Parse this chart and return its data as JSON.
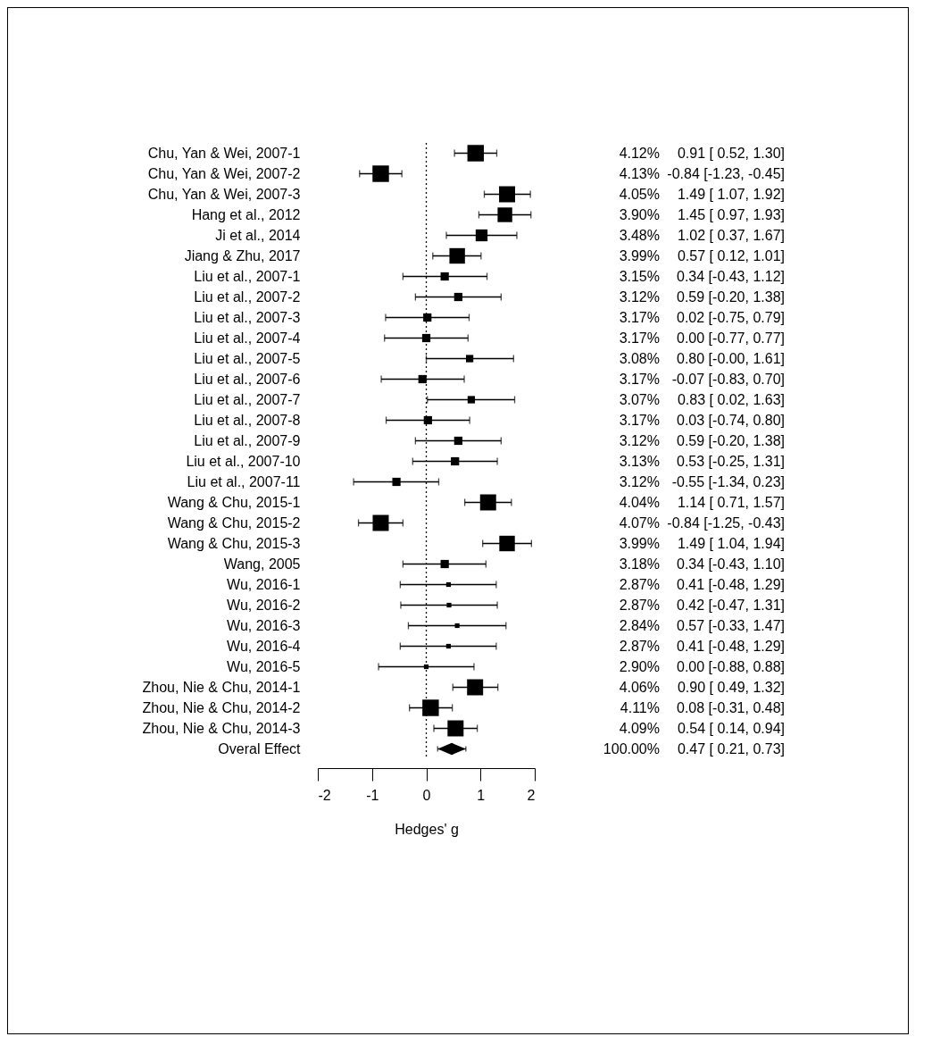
{
  "chart_data": {
    "type": "scatter",
    "orientation": "horizontal",
    "xlabel": "Hedges' g",
    "xlim": [
      -2,
      2
    ],
    "xticks": [
      -2,
      -1,
      0,
      1,
      2
    ],
    "grid": false,
    "categories": [
      "Chu, Yan & Wei, 2007-1",
      "Chu, Yan & Wei, 2007-2",
      "Chu, Yan & Wei, 2007-3",
      "Hang et al., 2012",
      "Ji et al., 2014",
      "Jiang & Zhu, 2017",
      "Liu et al., 2007-1",
      "Liu et al., 2007-2",
      "Liu et al., 2007-3",
      "Liu et al., 2007-4",
      "Liu et al., 2007-5",
      "Liu et al., 2007-6",
      "Liu et al., 2007-7",
      "Liu et al., 2007-8",
      "Liu et al., 2007-9",
      "Liu et al., 2007-10",
      "Liu et al., 2007-11",
      "Wang & Chu, 2015-1",
      "Wang & Chu, 2015-2",
      "Wang & Chu, 2015-3",
      "Wang, 2005",
      "Wu, 2016-1",
      "Wu, 2016-2",
      "Wu, 2016-3",
      "Wu, 2016-4",
      "Wu, 2016-5",
      "Zhou, Nie & Chu, 2014-1",
      "Zhou, Nie & Chu, 2014-2",
      "Zhou, Nie & Chu, 2014-3",
      "Overal Effect"
    ],
    "ref_lines": [
      {
        "axis": "x",
        "value": 0,
        "line_style": "dotted",
        "color": "#000000"
      }
    ],
    "series": [
      {
        "type": "scatter",
        "marker": "square",
        "color": "#000000",
        "values": [
          0.91,
          -0.84,
          1.49,
          1.45,
          1.02,
          0.57,
          0.34,
          0.59,
          0.02,
          0.0,
          0.8,
          -0.07,
          0.83,
          0.03,
          0.59,
          0.53,
          -0.55,
          1.14,
          -0.84,
          1.49,
          0.34,
          0.41,
          0.42,
          0.57,
          0.41,
          0.0,
          0.9,
          0.08,
          0.54,
          null
        ],
        "errors": [
          [
            0.52,
            1.3
          ],
          [
            -1.23,
            -0.45
          ],
          [
            1.07,
            1.92
          ],
          [
            0.97,
            1.93
          ],
          [
            0.37,
            1.67
          ],
          [
            0.12,
            1.01
          ],
          [
            -0.43,
            1.12
          ],
          [
            -0.2,
            1.38
          ],
          [
            -0.75,
            0.79
          ],
          [
            -0.77,
            0.77
          ],
          [
            -0.0,
            1.61
          ],
          [
            -0.83,
            0.7
          ],
          [
            0.02,
            1.63
          ],
          [
            -0.74,
            0.8
          ],
          [
            -0.2,
            1.38
          ],
          [
            -0.25,
            1.31
          ],
          [
            -1.34,
            0.23
          ],
          [
            0.71,
            1.57
          ],
          [
            -1.25,
            -0.43
          ],
          [
            1.04,
            1.94
          ],
          [
            -0.43,
            1.1
          ],
          [
            -0.48,
            1.29
          ],
          [
            -0.47,
            1.31
          ],
          [
            -0.33,
            1.47
          ],
          [
            -0.48,
            1.29
          ],
          [
            -0.88,
            0.88
          ],
          [
            0.49,
            1.32
          ],
          [
            -0.31,
            0.48
          ],
          [
            0.14,
            0.94
          ],
          null
        ],
        "sizes": [
          1,
          1,
          0.95,
          0.79,
          0.52,
          0.89,
          0.25,
          0.25,
          0.25,
          0.25,
          0.2,
          0.25,
          0.2,
          0.25,
          0.25,
          0.25,
          0.25,
          0.95,
          0.95,
          0.89,
          0.25,
          0.08,
          0.08,
          0.08,
          0.08,
          0.08,
          0.95,
          1,
          0.95,
          null
        ],
        "value_labels": [
          "4.12% 0.91 [ 0.52, 1.30]",
          "4.13% -0.84 [-1.23, -0.45]",
          "4.05% 1.49 [ 1.07, 1.92]",
          "3.90% 1.45 [ 0.97, 1.93]",
          "3.48% 1.02 [ 0.37, 1.67]",
          "3.99% 0.57 [ 0.12, 1.01]",
          "3.15% 0.34 [-0.43, 1.12]",
          "3.12% 0.59 [-0.20, 1.38]",
          "3.17% 0.02 [-0.75, 0.79]",
          "3.17% 0.00 [-0.77, 0.77]",
          "3.08% 0.80 [-0.00, 1.61]",
          "3.17% -0.07 [-0.83, 0.70]",
          "3.07% 0.83 [ 0.02, 1.63]",
          "3.17% 0.03 [-0.74, 0.80]",
          "3.12% 0.59 [-0.20, 1.38]",
          "3.13% 0.53 [-0.25, 1.31]",
          "3.12% -0.55 [-1.34, 0.23]",
          "4.04% 1.14 [ 0.71, 1.57]",
          "4.07% -0.84 [-1.25, -0.43]",
          "3.99% 1.49 [ 1.04, 1.94]",
          "3.18% 0.34 [-0.43, 1.10]",
          "2.87% 0.41 [-0.48, 1.29]",
          "2.87% 0.42 [-0.47, 1.31]",
          "2.84% 0.57 [-0.33, 1.47]",
          "2.87% 0.41 [-0.48, 1.29]",
          "2.90% 0.00 [-0.88, 0.88]",
          "4.06% 0.90 [ 0.49, 1.32]",
          "4.11% 0.08 [-0.31, 0.48]",
          "4.09% 0.54 [ 0.14, 0.94]",
          null
        ]
      },
      {
        "type": "scatter",
        "marker": "diamond",
        "color": "#000000",
        "values": [
          null,
          null,
          null,
          null,
          null,
          null,
          null,
          null,
          null,
          null,
          null,
          null,
          null,
          null,
          null,
          null,
          null,
          null,
          null,
          null,
          null,
          null,
          null,
          null,
          null,
          null,
          null,
          null,
          null,
          0.47
        ],
        "errors": [
          null,
          null,
          null,
          null,
          null,
          null,
          null,
          null,
          null,
          null,
          null,
          null,
          null,
          null,
          null,
          null,
          null,
          null,
          null,
          null,
          null,
          null,
          null,
          null,
          null,
          null,
          null,
          null,
          null,
          [
            0.21,
            0.73
          ]
        ],
        "value_labels": [
          null,
          null,
          null,
          null,
          null,
          null,
          null,
          null,
          null,
          null,
          null,
          null,
          null,
          null,
          null,
          null,
          null,
          null,
          null,
          null,
          null,
          null,
          null,
          null,
          null,
          null,
          null,
          null,
          null,
          "100.00% 0.47 [ 0.21, 0.73]"
        ]
      }
    ]
  }
}
